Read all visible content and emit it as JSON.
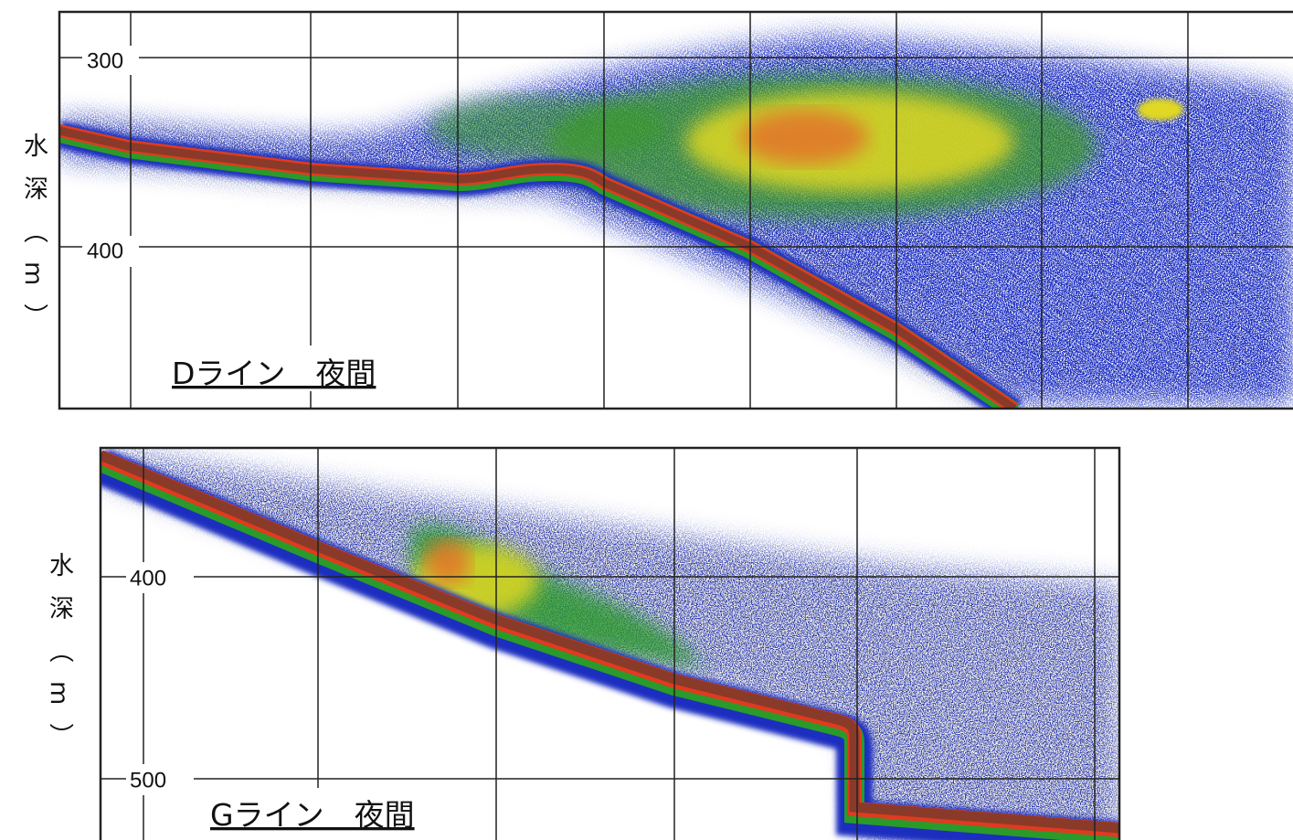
{
  "panels": [
    {
      "caption": "Dライン　夜間",
      "y_axis_label": "水深（m）",
      "y_ticks": [
        "300",
        "400"
      ]
    },
    {
      "caption": "Gライン　夜間",
      "y_axis_label": "水深（m）",
      "y_ticks": [
        "400",
        "500"
      ]
    }
  ]
}
